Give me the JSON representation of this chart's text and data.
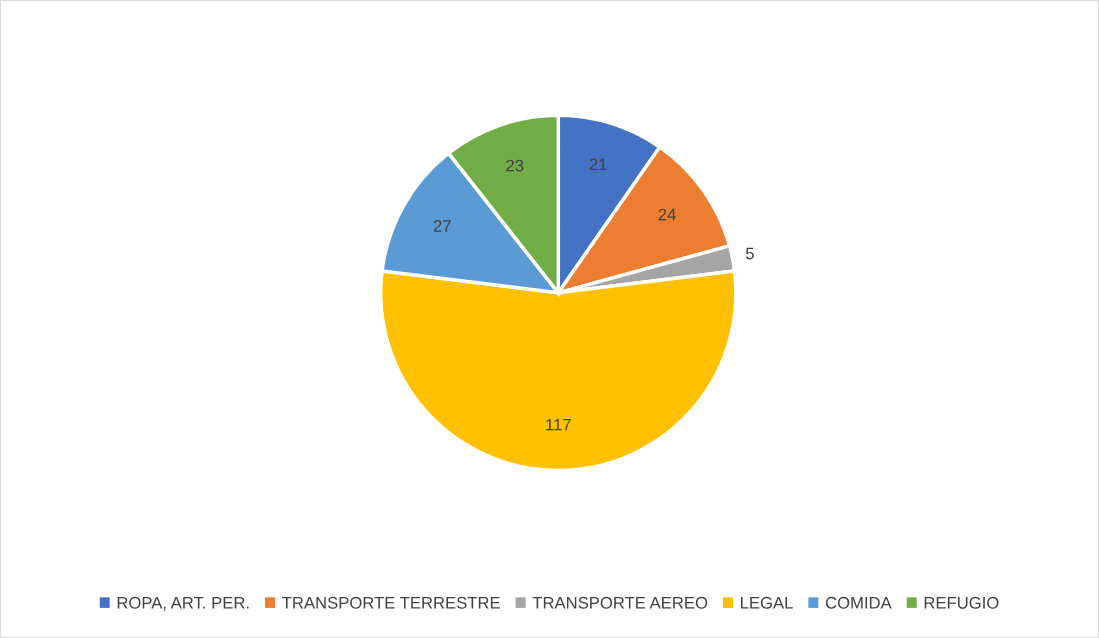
{
  "chart_data": {
    "type": "pie",
    "categories": [
      "ROPA, ART. PER.",
      "TRANSPORTE TERRESTRE",
      "TRANSPORTE AEREO",
      "LEGAL",
      "COMIDA",
      "REFUGIO"
    ],
    "values": [
      21,
      24,
      5,
      117,
      27,
      23
    ],
    "colors": [
      "#4472c4",
      "#ed7d31",
      "#a5a5a5",
      "#ffc000",
      "#5b9bd5",
      "#70ad47"
    ],
    "data_labels": true,
    "legend": "bottom"
  }
}
